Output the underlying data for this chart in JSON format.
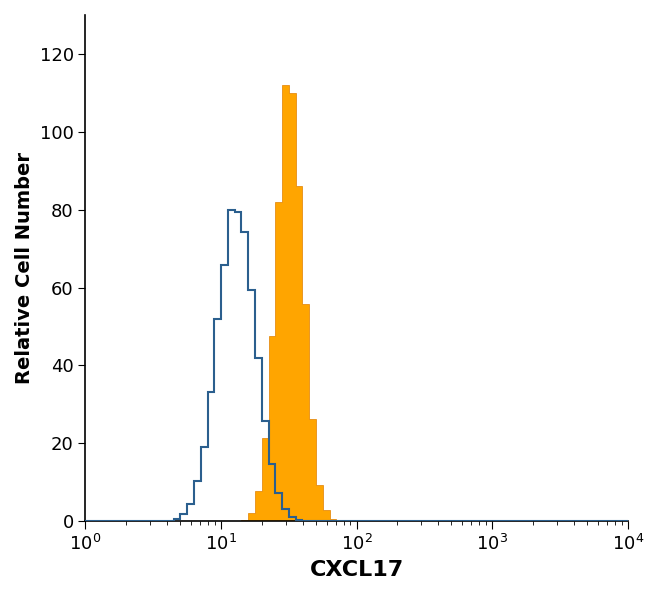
{
  "title": "",
  "xlabel": "CXCL17",
  "ylabel": "Relative Cell Number",
  "xlim_log": [
    1,
    10000
  ],
  "ylim": [
    0,
    130
  ],
  "yticks": [
    0,
    20,
    40,
    60,
    80,
    100,
    120
  ],
  "background_color": "#ffffff",
  "orange_color": "#FFA500",
  "orange_edge_color": "#E08000",
  "blue_color": "#2B5F8E",
  "xlabel_fontsize": 16,
  "ylabel_fontsize": 14,
  "tick_fontsize": 13,
  "blue_peak_x": 13.0,
  "blue_sigma": 0.32,
  "blue_peak_y": 80.0,
  "orange_peak_x": 32.0,
  "orange_sigma": 0.22,
  "orange_peak_y": 112.0,
  "n_bins": 80
}
